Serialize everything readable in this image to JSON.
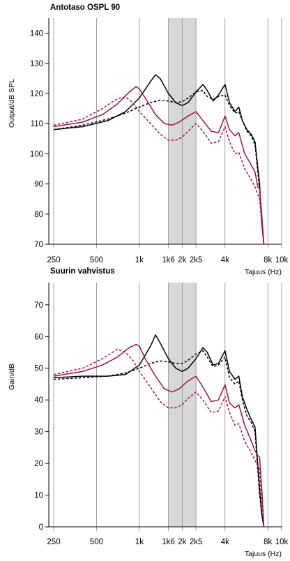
{
  "chart_data": [
    {
      "type": "line",
      "title": "Antotaso OSPL 90",
      "ylabel": "Output/dB SPL",
      "xlabel": "Tajuus (Hz)",
      "x_scale": "log",
      "xlim": [
        250,
        10000
      ],
      "ylim": [
        70,
        145
      ],
      "x_ticks": [
        250,
        500,
        1000,
        1600,
        2000,
        2500,
        4000,
        8000,
        10000
      ],
      "x_tick_labels": [
        "250",
        "500",
        "1k",
        "1k6",
        "2k",
        "2k5",
        "4k",
        "8k",
        "10k"
      ],
      "y_ticks": [
        70,
        80,
        90,
        100,
        110,
        120,
        130,
        140
      ],
      "y_tick_labels": [
        "70",
        "80",
        "90",
        "100",
        "110",
        "120",
        "130",
        "140"
      ],
      "grid": "vertical",
      "shaded_band": [
        1600,
        2500
      ],
      "series": [
        {
          "color": "#000000",
          "style": "solid",
          "x": [
            250,
            400,
            600,
            800,
            1000,
            1200,
            1300,
            1400,
            1600,
            1800,
            2000,
            2200,
            2500,
            2800,
            3000,
            3300,
            3600,
            4000,
            4300,
            4700,
            5000,
            5300,
            5700,
            6100,
            6500,
            7000,
            7200,
            7500
          ],
          "y": [
            108,
            109,
            111,
            114,
            118.5,
            124,
            126.2,
            125,
            120,
            117,
            116,
            117,
            120.5,
            123,
            121,
            117.5,
            119.5,
            123,
            117,
            114,
            115.5,
            111,
            108,
            106.5,
            104,
            90,
            80,
            70
          ]
        },
        {
          "color": "#000000",
          "style": "dashed",
          "x": [
            250,
            400,
            600,
            800,
            1000,
            1200,
            1400,
            1600,
            1800,
            2000,
            2200,
            2500,
            2800,
            3000,
            3300,
            3600,
            4000,
            4300,
            4700,
            5000,
            5300,
            5700,
            6100,
            6500,
            7000,
            7300,
            7500
          ],
          "y": [
            108,
            109.5,
            111.5,
            113.5,
            115.5,
            117,
            117.8,
            117.5,
            117,
            117.3,
            118.5,
            120.5,
            121,
            119,
            118,
            119,
            119.5,
            116,
            113.5,
            114,
            111,
            107.5,
            106,
            103,
            88,
            76,
            70
          ]
        },
        {
          "color": "#a1123d",
          "style": "solid",
          "x": [
            250,
            400,
            550,
            700,
            850,
            950,
            1000,
            1100,
            1300,
            1500,
            1700,
            1900,
            2200,
            2500,
            2800,
            3200,
            3600,
            4000,
            4300,
            4700,
            5000,
            5500,
            6000,
            6500,
            6800,
            7000,
            7300,
            7500
          ],
          "y": [
            109,
            110.5,
            113,
            116.5,
            120.5,
            122.3,
            121.5,
            118.5,
            113,
            110,
            109.5,
            110.5,
            112.5,
            114,
            111,
            107.5,
            107,
            112.5,
            108,
            106,
            107,
            100,
            97,
            94,
            89,
            88.5,
            78,
            70
          ]
        },
        {
          "color": "#a1123d",
          "style": "dashed",
          "x": [
            250,
            400,
            550,
            700,
            800,
            900,
            1000,
            1200,
            1400,
            1600,
            1800,
            2000,
            2200,
            2500,
            2800,
            3200,
            3600,
            4000,
            4300,
            4700,
            5000,
            5500,
            6000,
            6500,
            7000,
            7300,
            7500
          ],
          "y": [
            109.5,
            111.5,
            115,
            118.3,
            118.8,
            117,
            114,
            110,
            106.5,
            104.5,
            104.5,
            105.5,
            107.5,
            110,
            107.5,
            103.5,
            104,
            109,
            104,
            100,
            100.5,
            95,
            92,
            89,
            85,
            75,
            70
          ]
        }
      ]
    },
    {
      "type": "line",
      "title": "Suurin vahvistus",
      "ylabel": "Gain/dB",
      "xlabel": "Tajuus (Hz)",
      "x_scale": "log",
      "xlim": [
        250,
        10000
      ],
      "ylim": [
        0,
        77
      ],
      "x_ticks": [
        250,
        500,
        1000,
        1600,
        2000,
        2500,
        4000,
        8000,
        10000
      ],
      "x_tick_labels": [
        "250",
        "500",
        "1k",
        "1k6",
        "2k",
        "2k5",
        "4k",
        "8k",
        "10k"
      ],
      "y_ticks": [
        0,
        10,
        20,
        30,
        40,
        50,
        60,
        70
      ],
      "y_tick_labels": [
        "0",
        "10",
        "20",
        "30",
        "40",
        "50",
        "60",
        "70"
      ],
      "grid": "vertical",
      "shaded_band": [
        1600,
        2500
      ],
      "series": [
        {
          "color": "#000000",
          "style": "solid",
          "x": [
            250,
            400,
            600,
            800,
            1000,
            1200,
            1300,
            1400,
            1600,
            1800,
            2000,
            2200,
            2500,
            2800,
            3000,
            3300,
            3600,
            4000,
            4300,
            4700,
            5000,
            5300,
            5700,
            6100,
            6500,
            7000,
            7200,
            7500
          ],
          "y": [
            47,
            47.5,
            47.5,
            48,
            51,
            57,
            60.5,
            58,
            53,
            50,
            49,
            50,
            53,
            56.5,
            55,
            51,
            51.5,
            55.5,
            49,
            46.5,
            47.5,
            41,
            37,
            34,
            31.5,
            12,
            5,
            0
          ]
        },
        {
          "color": "#000000",
          "style": "dashed",
          "x": [
            250,
            400,
            600,
            800,
            1000,
            1200,
            1400,
            1600,
            1800,
            2000,
            2200,
            2500,
            2800,
            3000,
            3300,
            3600,
            4000,
            4300,
            4700,
            5000,
            5300,
            5700,
            6100,
            6500,
            7000,
            7300,
            7500
          ],
          "y": [
            46.5,
            47,
            47.5,
            48.5,
            50,
            51.5,
            52.3,
            52,
            51.5,
            51.5,
            52.5,
            54.5,
            55.5,
            53.5,
            50.5,
            51,
            53.5,
            47,
            45,
            46,
            40,
            35,
            33,
            30,
            10,
            3,
            0
          ]
        },
        {
          "color": "#a1123d",
          "style": "solid",
          "x": [
            250,
            400,
            550,
            700,
            850,
            950,
            1000,
            1100,
            1300,
            1500,
            1700,
            1900,
            2200,
            2500,
            2800,
            3200,
            3600,
            4000,
            4300,
            4700,
            5000,
            5500,
            6000,
            6500,
            6800,
            7000,
            7300,
            7500
          ],
          "y": [
            47.5,
            49,
            51,
            53.5,
            56.5,
            57.5,
            57,
            53,
            47.5,
            43.5,
            42.5,
            43.5,
            46,
            47.5,
            44,
            39.5,
            40,
            44.8,
            39,
            37.5,
            38.5,
            32,
            28,
            24,
            22.5,
            22,
            10,
            0
          ]
        },
        {
          "color": "#a1123d",
          "style": "dashed",
          "x": [
            250,
            400,
            550,
            700,
            800,
            900,
            1000,
            1200,
            1400,
            1600,
            1800,
            2000,
            2200,
            2500,
            2800,
            3200,
            3600,
            4000,
            4300,
            4700,
            5000,
            5500,
            6000,
            6500,
            7000,
            7300,
            7500
          ],
          "y": [
            48,
            50,
            53,
            56,
            55,
            52.5,
            49,
            44,
            39.5,
            37.5,
            37.5,
            38.5,
            40.5,
            42.5,
            40,
            36,
            36.5,
            41,
            36,
            32,
            32.5,
            27,
            24,
            21,
            18,
            6,
            0
          ]
        }
      ]
    }
  ]
}
